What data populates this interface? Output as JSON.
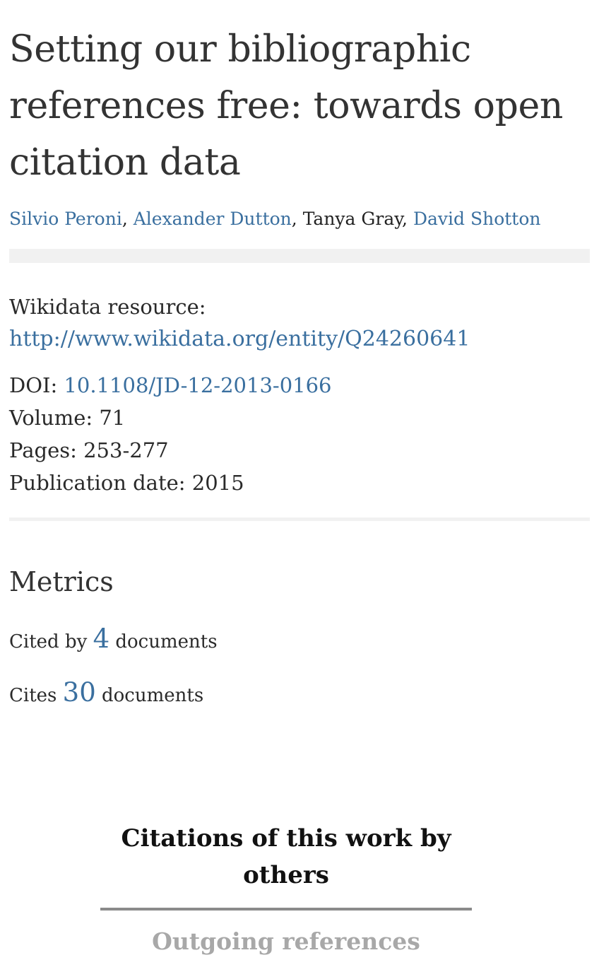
{
  "article": {
    "title": "Setting our bibliographic references free: towards open citation data",
    "authors": [
      {
        "name": "Silvio Peroni",
        "sep": ", "
      },
      {
        "name": "Alexander Dutton",
        "sep": ", "
      },
      {
        "name": "Tanya Gray",
        "sep": ", "
      },
      {
        "name": "David Shotton",
        "sep": ""
      }
    ]
  },
  "meta": {
    "wikidata_label": "Wikidata resource:",
    "wikidata_url": "http://www.wikidata.org/entity/Q24260641",
    "doi_label": "DOI: ",
    "doi_value": "10.1108/JD-12-2013-0166",
    "volume": "Volume: 71",
    "pages": "Pages: 253-277",
    "publication_date": "Publication date: 2015"
  },
  "metrics": {
    "heading": "Metrics",
    "cited_by_prefix": "Cited by ",
    "cited_by_count": "4",
    "cited_by_suffix": " documents",
    "cites_prefix": "Cites ",
    "cites_count": "30",
    "cites_suffix": " documents"
  },
  "tabs": {
    "active": "Citations of this work by others",
    "inactive": "Outgoing references"
  }
}
